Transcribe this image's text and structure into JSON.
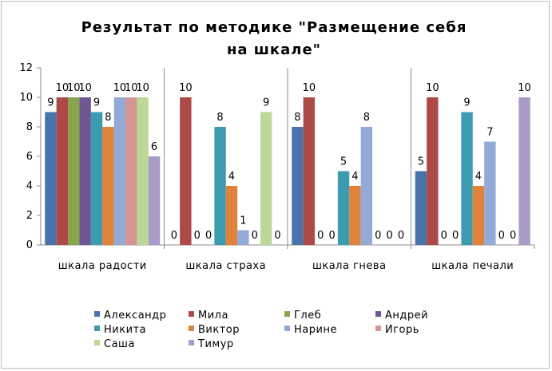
{
  "chart_data": {
    "type": "bar",
    "title_lines": [
      "Результат по методике \"Размещение себя",
      "на шкале\""
    ],
    "categories": [
      "шкала радости",
      "шкала страха",
      "шкала гнева",
      "шкала печали"
    ],
    "ylim": [
      0,
      12
    ],
    "yticks": [
      0,
      2,
      4,
      6,
      8,
      10,
      12
    ],
    "grid": false,
    "legend_position": "bottom",
    "series": [
      {
        "name": "Александр",
        "color": "#4a72ac",
        "values": [
          9,
          0,
          8,
          5
        ]
      },
      {
        "name": "Мила",
        "color": "#ad4a48",
        "values": [
          10,
          10,
          10,
          10
        ]
      },
      {
        "name": "Глеб",
        "color": "#88a54e",
        "values": [
          10,
          0,
          0,
          0
        ]
      },
      {
        "name": "Андрей",
        "color": "#6f5591",
        "values": [
          10,
          0,
          0,
          0
        ]
      },
      {
        "name": "Никита",
        "color": "#3d9bb0",
        "values": [
          9,
          8,
          5,
          9
        ]
      },
      {
        "name": "Виктор",
        "color": "#e0823c",
        "values": [
          8,
          4,
          4,
          4
        ]
      },
      {
        "name": "Нарине",
        "color": "#93a9d6",
        "values": [
          10,
          1,
          8,
          7
        ]
      },
      {
        "name": "Игорь",
        "color": "#d39593",
        "values": [
          10,
          0,
          0,
          0
        ]
      },
      {
        "name": "Саша",
        "color": "#bcd796",
        "values": [
          10,
          9,
          0,
          0
        ]
      },
      {
        "name": "Тимур",
        "color": "#a99bc7",
        "values": [
          6,
          0,
          0,
          10
        ]
      }
    ]
  }
}
